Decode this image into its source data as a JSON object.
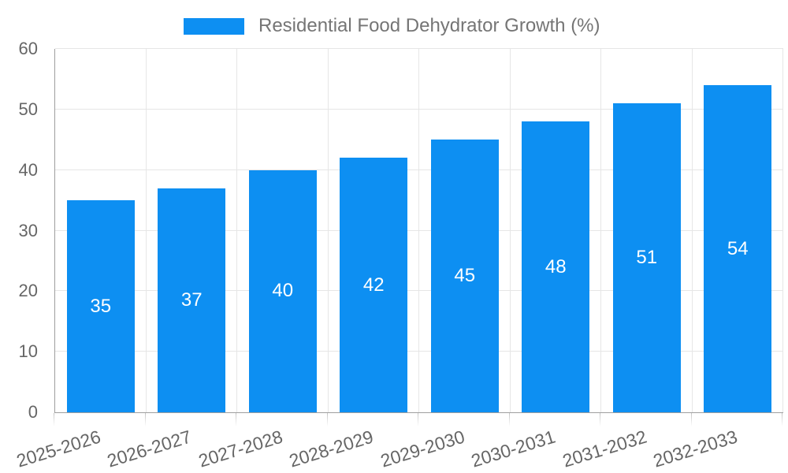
{
  "chart_data": {
    "type": "bar",
    "title": "Residential Food Dehydrator Growth (%)",
    "categories": [
      "2025-2026",
      "2026-2027",
      "2027-2028",
      "2028-2029",
      "2029-2030",
      "2030-2031",
      "2031-2032",
      "2032-2033"
    ],
    "values": [
      35,
      37,
      40,
      42,
      45,
      48,
      51,
      54
    ],
    "xlabel": "",
    "ylabel": "",
    "ylim": [
      0,
      60
    ],
    "ytick_step": 10,
    "grid": true,
    "legend_position": "top-center",
    "colors": {
      "bar": "#0d8ff2",
      "value_label": "#ffffff",
      "grid": "#e6e6e6",
      "axis_line": "#9e9e9e",
      "tick_mark": "#c4c4c4",
      "tick_label": "#666666",
      "legend_text": "#757575",
      "background": "#ffffff"
    }
  }
}
